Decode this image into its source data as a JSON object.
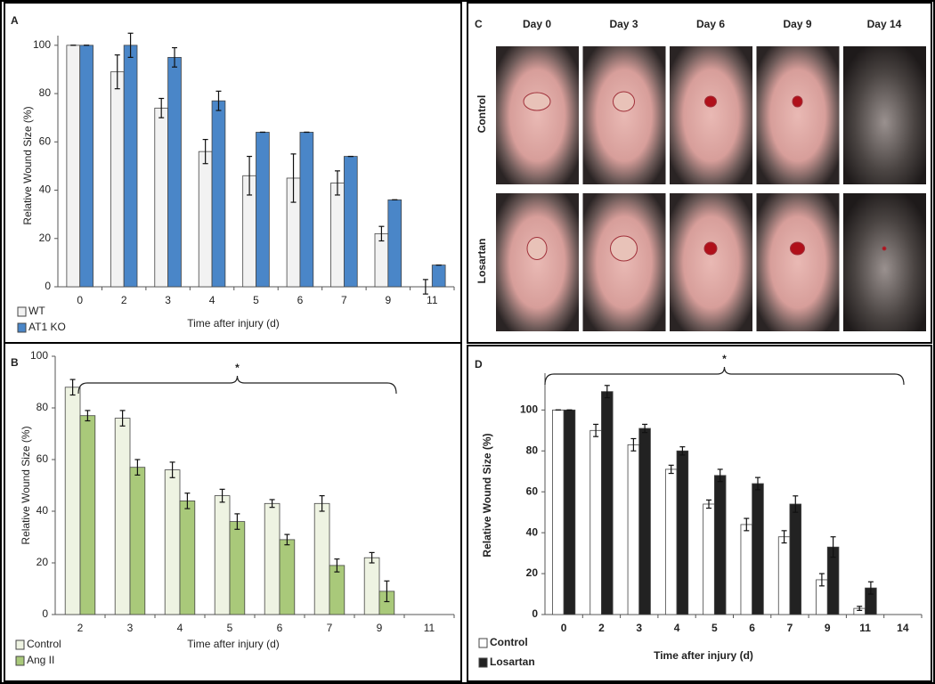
{
  "chart_data": [
    {
      "type": "bar",
      "label": "A",
      "xlabel": "Time after injury (d)",
      "ylabel": "Relative Wound Size (%)",
      "categories": [
        "0",
        "2",
        "3",
        "4",
        "5",
        "6",
        "7",
        "9",
        "11"
      ],
      "series": [
        {
          "name": "WT",
          "color": "#f2f2f2",
          "values": [
            100,
            89,
            74,
            56,
            46,
            45,
            43,
            22,
            0
          ],
          "errors": [
            0,
            7,
            4,
            5,
            8,
            10,
            5,
            3,
            3
          ]
        },
        {
          "name": "AT1 KO",
          "color": "#4a86c8",
          "values": [
            100,
            100,
            95,
            77,
            64,
            64,
            54,
            36,
            9
          ],
          "errors": [
            0,
            5,
            4,
            4,
            0,
            0,
            0,
            0,
            0
          ]
        }
      ],
      "ylim": [
        0,
        104
      ],
      "yticks": [
        0,
        20,
        40,
        60,
        80,
        100
      ]
    },
    {
      "type": "bar",
      "label": "B",
      "xlabel": "Time after injury (d)",
      "ylabel": "Relative Wound Size (%)",
      "annotation": "*",
      "categories": [
        "2",
        "3",
        "4",
        "5",
        "6",
        "7",
        "9",
        "11"
      ],
      "series": [
        {
          "name": "Control",
          "color": "#eef3e2",
          "values": [
            88,
            76,
            56,
            46,
            43,
            43,
            22,
            null
          ],
          "errors": [
            3,
            3,
            3,
            2.5,
            1.5,
            3,
            2,
            null
          ]
        },
        {
          "name": "Ang II",
          "color": "#a9c97a",
          "values": [
            77,
            57,
            44,
            36,
            29,
            19,
            9,
            null
          ],
          "errors": [
            2,
            3,
            3,
            3,
            2,
            2.5,
            4,
            null
          ]
        }
      ],
      "ylim": [
        0,
        100
      ],
      "yticks": [
        0,
        20,
        40,
        60,
        80,
        100
      ]
    },
    {
      "type": "bar",
      "label": "D",
      "xlabel": "Time after injury (d)",
      "ylabel": "Relative Wound Size (%)",
      "annotation": "*",
      "categories": [
        "0",
        "2",
        "3",
        "4",
        "5",
        "6",
        "7",
        "9",
        "11",
        "14"
      ],
      "series": [
        {
          "name": "Control",
          "color": "#ffffff",
          "values": [
            100,
            90,
            83,
            71,
            54,
            44,
            38,
            17,
            3,
            null
          ],
          "errors": [
            0,
            3,
            3,
            2,
            2,
            3,
            3,
            3,
            1,
            null
          ]
        },
        {
          "name": "Losartan",
          "color": "#222222",
          "values": [
            100,
            109,
            91,
            80,
            68,
            64,
            54,
            33,
            13,
            null
          ],
          "errors": [
            0,
            3,
            2,
            2,
            3,
            3,
            4,
            5,
            3,
            null
          ]
        }
      ],
      "ylim": [
        0,
        118
      ],
      "yticks": [
        0,
        20,
        40,
        60,
        80,
        100
      ]
    }
  ],
  "photo_panel": {
    "label": "C",
    "columns": [
      "Day 0",
      "Day 3",
      "Day 6",
      "Day 9",
      "Day 14"
    ],
    "rows": [
      "Control",
      "Losartan"
    ]
  }
}
